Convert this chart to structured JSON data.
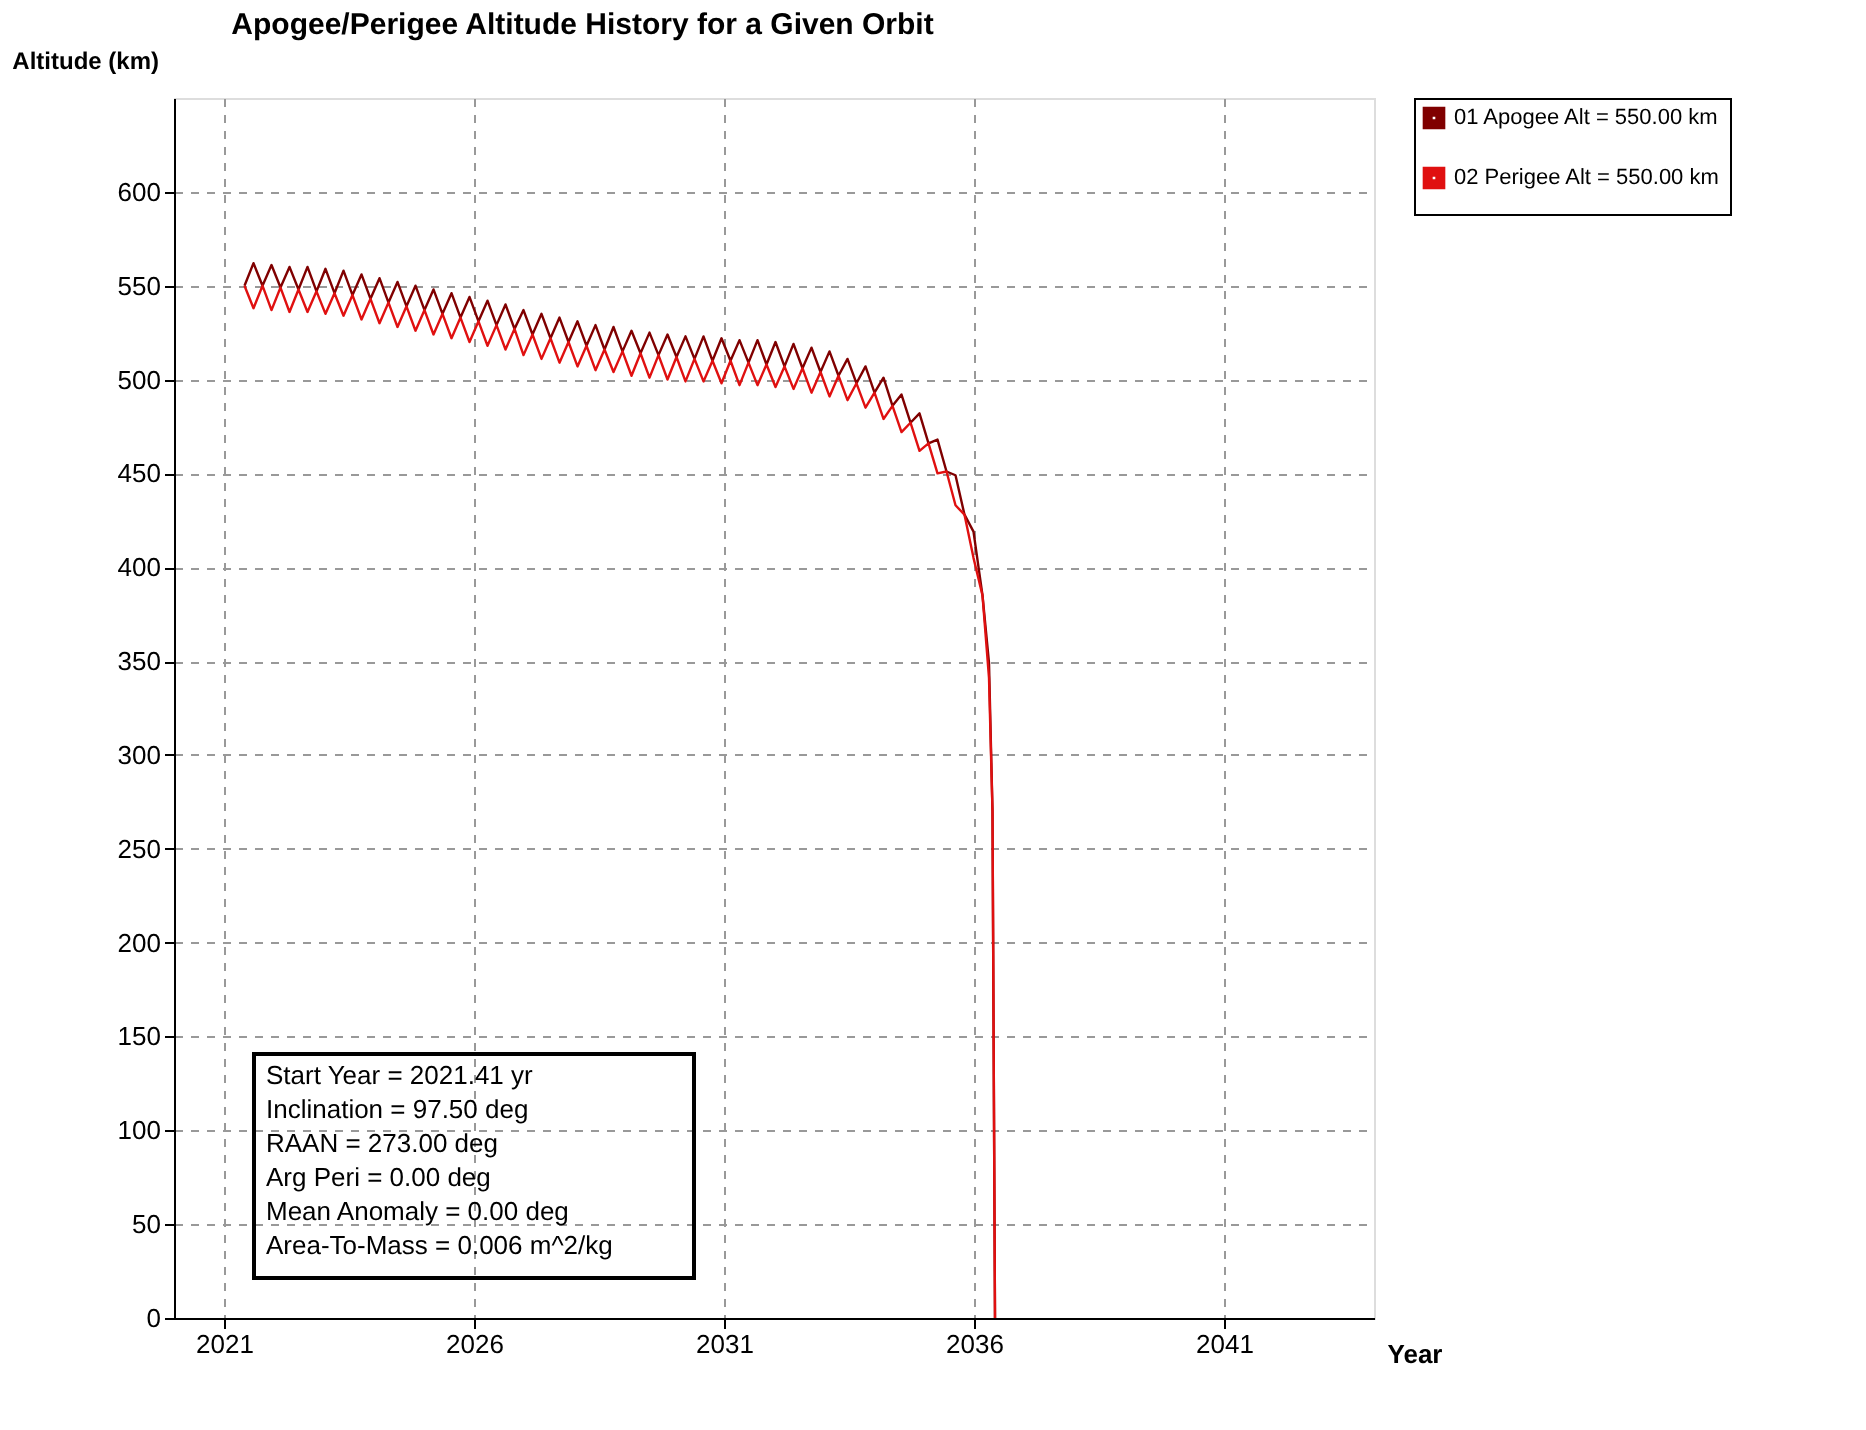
{
  "chart_data": {
    "type": "line",
    "title": "Apogee/Perigee Altitude History for a Given Orbit",
    "xlabel": "Year",
    "ylabel": "Altitude (km)",
    "x": [
      2021.41,
      2021.59,
      2021.77,
      2021.95,
      2022.13,
      2022.31,
      2022.49,
      2022.67,
      2022.85,
      2023.03,
      2023.21,
      2023.39,
      2023.57,
      2023.75,
      2023.93,
      2024.11,
      2024.29,
      2024.47,
      2024.65,
      2024.83,
      2025.01,
      2025.19,
      2025.37,
      2025.55,
      2025.73,
      2025.91,
      2026.09,
      2026.27,
      2026.45,
      2026.63,
      2026.81,
      2026.99,
      2027.17,
      2027.35,
      2027.53,
      2027.71,
      2027.89,
      2028.07,
      2028.25,
      2028.43,
      2028.61,
      2028.79,
      2028.97,
      2029.15,
      2029.33,
      2029.51,
      2029.69,
      2029.87,
      2030.05,
      2030.23,
      2030.41,
      2030.59,
      2030.77,
      2030.95,
      2031.13,
      2031.31,
      2031.49,
      2031.67,
      2031.85,
      2032.03,
      2032.21,
      2032.39,
      2032.57,
      2032.75,
      2032.93,
      2033.11,
      2033.29,
      2033.47,
      2033.65,
      2033.83,
      2034.01,
      2034.19,
      2034.37,
      2034.55,
      2034.73,
      2034.91,
      2035.09,
      2035.27,
      2035.45,
      2035.63,
      2035.81,
      2035.99,
      2036.17,
      2036.3,
      2036.37,
      2036.42
    ],
    "series": [
      {
        "name": "01 Apogee Alt = 550.00 km",
        "color": "#800000",
        "values": [
          550,
          562,
          550,
          561,
          549,
          560,
          548,
          560,
          547,
          559,
          546,
          558,
          545,
          556,
          543,
          554,
          541,
          552,
          539,
          550,
          537,
          548,
          535,
          546,
          533,
          544,
          531,
          542,
          529,
          540,
          527,
          537,
          524,
          535,
          522,
          533,
          520,
          531,
          518,
          529,
          516,
          528,
          515,
          526,
          514,
          525,
          513,
          524,
          512,
          523,
          511,
          523,
          510,
          522,
          510,
          521,
          509,
          521,
          508,
          520,
          507,
          519,
          506,
          517,
          504,
          515,
          502,
          511,
          498,
          507,
          493,
          501,
          486,
          492,
          477,
          482,
          466,
          468,
          451,
          449,
          428,
          419,
          385,
          349,
          270,
          0
        ]
      },
      {
        "name": "02 Perigee Alt = 550.00 km",
        "color": "#e01010",
        "values": [
          550,
          538,
          550,
          537,
          549,
          536,
          548,
          536,
          547,
          535,
          546,
          534,
          545,
          532,
          543,
          530,
          541,
          528,
          539,
          526,
          537,
          524,
          535,
          522,
          533,
          520,
          531,
          518,
          529,
          516,
          527,
          513,
          524,
          511,
          522,
          509,
          520,
          507,
          518,
          505,
          516,
          504,
          515,
          502,
          514,
          501,
          513,
          500,
          512,
          499,
          511,
          499,
          510,
          498,
          510,
          497,
          509,
          497,
          508,
          496,
          507,
          495,
          506,
          493,
          504,
          491,
          502,
          489,
          498,
          485,
          493,
          479,
          486,
          472,
          477,
          462,
          466,
          450,
          451,
          433,
          428,
          405,
          385,
          341,
          270,
          0
        ]
      }
    ],
    "xlim": [
      2020,
      2044
    ],
    "xticks": [
      2021,
      2026,
      2031,
      2036,
      2041
    ],
    "ylim": [
      0,
      650
    ],
    "yticks": [
      0,
      50,
      100,
      150,
      200,
      250,
      300,
      350,
      400,
      450,
      500,
      550,
      600
    ],
    "grid": true,
    "legend": "top right",
    "line_style": "solid",
    "marker": "none",
    "annotations": [
      "Start Year = 2021.41 yr",
      "Inclination = 97.50 deg",
      "RAAN = 273.00 deg",
      "Arg Peri = 0.00 deg",
      "Mean Anomaly = 0.00 deg",
      "Area-To-Mass = 0.006 m^2/kg"
    ]
  }
}
